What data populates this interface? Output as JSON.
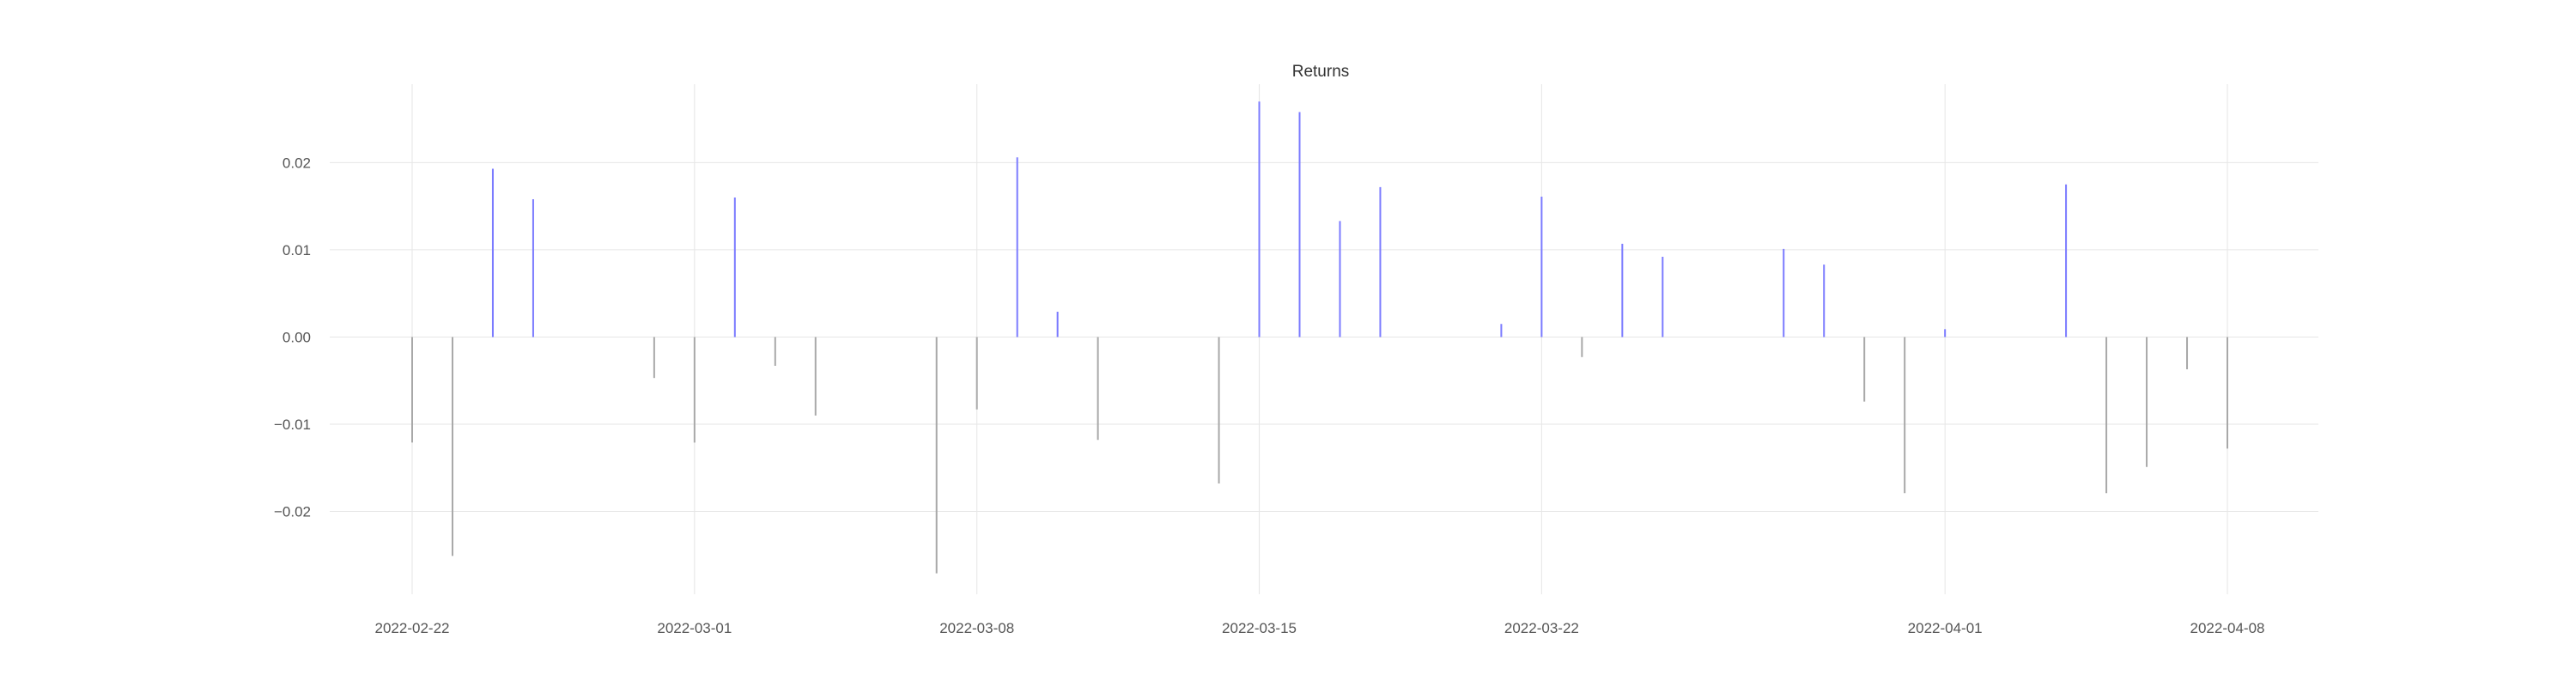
{
  "chart_data": {
    "type": "bar",
    "title": "Returns",
    "xlabel": "",
    "ylabel": "",
    "grid": true,
    "legend": "none",
    "colors": {
      "positive": "#7b7bff",
      "negative": "#a8a8a8",
      "grid": "#e6e6e6",
      "zero_line": "#e6e6e6"
    },
    "xlim": [
      "2022-02-22",
      "2022-04-10"
    ],
    "ylim": [
      -0.0295,
      0.029
    ],
    "x_ticks": [
      "2022-02-22",
      "2022-03-01",
      "2022-03-08",
      "2022-03-15",
      "2022-03-22",
      "2022-04-01",
      "2022-04-08"
    ],
    "y_ticks": [
      {
        "value": -0.02,
        "label": "−0.02"
      },
      {
        "value": -0.01,
        "label": "−0.01"
      },
      {
        "value": 0.0,
        "label": "0.00"
      },
      {
        "value": 0.01,
        "label": "0.01"
      },
      {
        "value": 0.02,
        "label": "0.02"
      }
    ],
    "series": [
      {
        "x": [
          "2022-02-22",
          "2022-02-23",
          "2022-02-24",
          "2022-02-25",
          "2022-02-28",
          "2022-03-01",
          "2022-03-02",
          "2022-03-03",
          "2022-03-04",
          "2022-03-07",
          "2022-03-08",
          "2022-03-09",
          "2022-03-10",
          "2022-03-11",
          "2022-03-14",
          "2022-03-15",
          "2022-03-16",
          "2022-03-17",
          "2022-03-18",
          "2022-03-21",
          "2022-03-22",
          "2022-03-23",
          "2022-03-24",
          "2022-03-25",
          "2022-03-28",
          "2022-03-29",
          "2022-03-30",
          "2022-03-31",
          "2022-04-01",
          "2022-04-04",
          "2022-04-05",
          "2022-04-06",
          "2022-04-07",
          "2022-04-08"
        ],
        "values": [
          -0.0121,
          -0.0251,
          0.0193,
          0.0158,
          -0.0047,
          -0.0121,
          0.016,
          -0.0033,
          -0.009,
          -0.0271,
          -0.0083,
          0.0206,
          0.0029,
          -0.0118,
          -0.0168,
          0.027,
          0.0258,
          0.0133,
          0.0172,
          0.0015,
          0.0161,
          -0.0023,
          0.0107,
          0.0092,
          0.0101,
          0.0083,
          -0.0074,
          -0.0179,
          0.0009,
          0.0175,
          -0.0179,
          -0.0149,
          -0.0037,
          -0.0128
        ]
      }
    ]
  }
}
